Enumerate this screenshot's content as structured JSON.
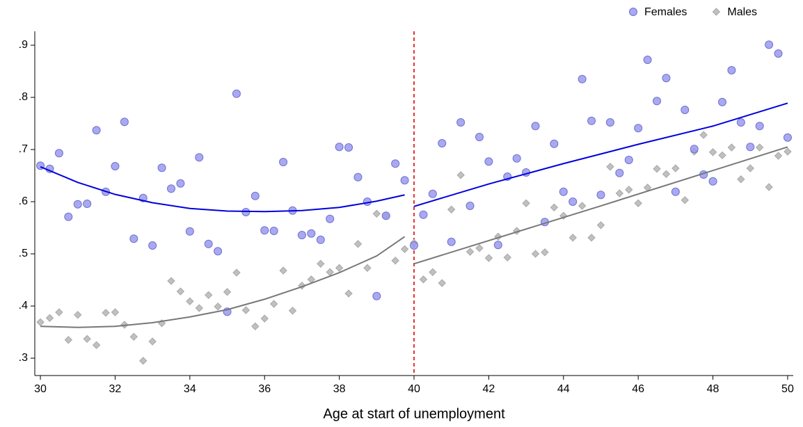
{
  "chart_data": {
    "type": "scatter",
    "xlabel": "Age at start of unemployment",
    "xlim": [
      29.85,
      50.15
    ],
    "ylim": [
      0.2667,
      0.9267
    ],
    "xticks": [
      30,
      32,
      34,
      36,
      38,
      40,
      42,
      44,
      46,
      48,
      50
    ],
    "yticks": [
      {
        "value": 0.3,
        "label": ".3"
      },
      {
        "value": 0.4,
        "label": ".4"
      },
      {
        "value": 0.5,
        "label": ".5"
      },
      {
        "value": 0.6,
        "label": ".6"
      },
      {
        "value": 0.7,
        "label": ".7"
      },
      {
        "value": 0.8,
        "label": ".8"
      },
      {
        "value": 0.9,
        "label": ".9"
      }
    ],
    "legend": "top-right",
    "cutoff": 40,
    "cutoff_color": "#e00000",
    "x": [
      30,
      30.25,
      30.5,
      30.75,
      31,
      31.25,
      31.5,
      31.75,
      32,
      32.25,
      32.5,
      32.75,
      33,
      33.25,
      33.5,
      33.75,
      34,
      34.25,
      34.5,
      34.75,
      35,
      35.25,
      35.5,
      35.75,
      36,
      36.25,
      36.5,
      36.75,
      37,
      37.25,
      37.5,
      37.75,
      38,
      38.25,
      38.5,
      38.75,
      39,
      39.25,
      39.5,
      39.75,
      40,
      40.25,
      40.5,
      40.75,
      41,
      41.25,
      41.5,
      41.75,
      42,
      42.25,
      42.5,
      42.75,
      43,
      43.25,
      43.5,
      43.75,
      44,
      44.25,
      44.5,
      44.75,
      45,
      45.25,
      45.5,
      45.75,
      46,
      46.25,
      46.5,
      46.75,
      47,
      47.25,
      47.5,
      47.75,
      48,
      48.25,
      48.5,
      48.75,
      49,
      49.25,
      49.5,
      49.75,
      50
    ],
    "series": [
      {
        "name": "Females",
        "color": "#9a9af0",
        "marker": "circle",
        "values": [
          0.669,
          0.663,
          0.693,
          0.571,
          0.595,
          0.596,
          0.737,
          0.619,
          0.668,
          0.753,
          0.529,
          0.607,
          0.516,
          0.665,
          0.625,
          0.635,
          0.543,
          0.685,
          0.519,
          0.505,
          0.389,
          0.807,
          0.58,
          0.611,
          0.545,
          0.544,
          0.676,
          0.583,
          0.536,
          0.539,
          0.527,
          0.567,
          0.705,
          0.704,
          0.647,
          0.6,
          0.419,
          0.573,
          0.673,
          0.641,
          0.516,
          0.575,
          0.615,
          0.712,
          0.523,
          0.752,
          0.592,
          0.724,
          0.677,
          0.517,
          0.648,
          0.683,
          0.656,
          0.745,
          0.561,
          0.711,
          0.619,
          0.6,
          0.835,
          0.755,
          0.613,
          0.752,
          0.655,
          0.68,
          0.741,
          0.872,
          0.793,
          0.837,
          0.619,
          0.776,
          0.701,
          0.652,
          0.639,
          0.791,
          0.852,
          0.752,
          0.705,
          0.745,
          0.901,
          0.884,
          0.723
        ]
      },
      {
        "name": "Males",
        "color": "#c0c0c0",
        "marker": "diamond",
        "values": [
          0.369,
          0.377,
          0.388,
          0.335,
          0.383,
          0.337,
          0.325,
          0.387,
          0.388,
          0.364,
          0.341,
          0.295,
          0.332,
          0.367,
          0.448,
          0.428,
          0.409,
          0.396,
          0.421,
          0.399,
          0.427,
          0.464,
          0.392,
          0.361,
          0.376,
          0.404,
          0.468,
          0.391,
          0.439,
          0.451,
          0.481,
          0.465,
          0.473,
          0.424,
          0.519,
          0.473,
          0.577,
          0.573,
          0.487,
          0.509,
          0.521,
          0.451,
          0.465,
          0.444,
          0.585,
          0.651,
          0.504,
          0.511,
          0.492,
          0.533,
          0.493,
          0.544,
          0.597,
          0.5,
          0.503,
          0.589,
          0.573,
          0.531,
          0.592,
          0.531,
          0.555,
          0.667,
          0.616,
          0.623,
          0.597,
          0.627,
          0.663,
          0.653,
          0.664,
          0.603,
          0.696,
          0.728,
          0.695,
          0.689,
          0.704,
          0.643,
          0.664,
          0.704,
          0.628,
          0.688,
          0.696
        ]
      }
    ],
    "fits": [
      {
        "color": "#0000dd",
        "x": [
          30,
          31,
          32,
          33,
          34,
          35,
          36,
          37,
          38,
          39,
          39.75
        ],
        "values": [
          0.667,
          0.637,
          0.614,
          0.598,
          0.587,
          0.582,
          0.581,
          0.583,
          0.589,
          0.601,
          0.613
        ]
      },
      {
        "color": "#0000dd",
        "x": [
          40,
          42,
          44,
          46,
          48,
          50
        ],
        "values": [
          0.591,
          0.634,
          0.673,
          0.71,
          0.745,
          0.789
        ]
      },
      {
        "color": "#777777",
        "x": [
          30,
          31,
          32,
          33,
          34,
          35,
          36,
          37,
          38,
          39,
          39.75
        ],
        "values": [
          0.361,
          0.359,
          0.361,
          0.368,
          0.379,
          0.393,
          0.413,
          0.437,
          0.464,
          0.496,
          0.533
        ]
      },
      {
        "color": "#777777",
        "x": [
          40,
          45,
          50
        ],
        "values": [
          0.481,
          0.592,
          0.705
        ]
      }
    ]
  }
}
